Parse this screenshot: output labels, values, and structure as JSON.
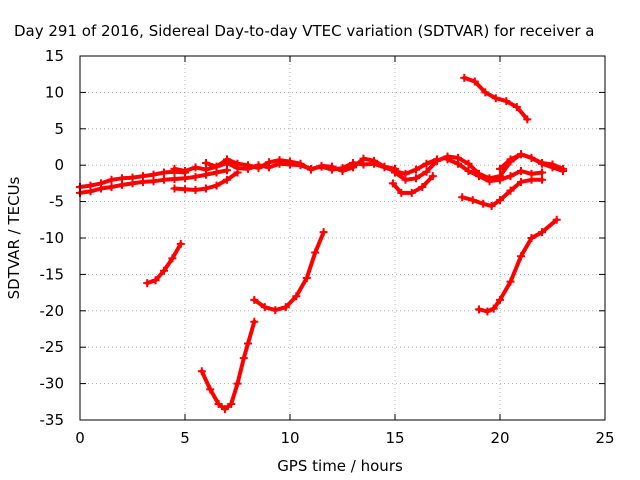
{
  "chart_data": {
    "type": "scatter",
    "title": "Day 291 of 2016, Sidereal Day-to-day VTEC variation (SDTVAR) for receiver a",
    "xlabel": "GPS time / hours",
    "ylabel": "SDTVAR / TECUs",
    "xlim": [
      0,
      25
    ],
    "ylim": [
      -35,
      15
    ],
    "xticks": [
      "0",
      "5",
      "10",
      "15",
      "20",
      "25"
    ],
    "yticks": [
      "15",
      "10",
      "5",
      "0",
      "-5",
      "-10",
      "-15",
      "-20",
      "-25",
      "-30",
      "-35"
    ],
    "grid": true,
    "marker_color": "#ff0000",
    "series": [
      {
        "x": [
          0.0,
          0.5,
          1.0,
          1.5,
          2.0,
          2.5,
          3.0,
          3.5,
          4.0,
          4.5,
          5.0,
          5.5,
          6.0,
          6.5,
          7.0
        ],
        "y": [
          -3.8,
          -3.6,
          -3.2,
          -3.0,
          -2.7,
          -2.5,
          -2.3,
          -2.2,
          -2.0,
          -1.9,
          -1.8,
          -1.6,
          -1.3,
          -1.0,
          -0.7
        ]
      },
      {
        "x": [
          0.0,
          0.5,
          1.0,
          1.5,
          2.0,
          2.5,
          3.0,
          3.5,
          4.0,
          4.5,
          5.0
        ],
        "y": [
          -3.0,
          -2.8,
          -2.5,
          -2.0,
          -1.8,
          -1.7,
          -1.5,
          -1.3,
          -1.0,
          -0.9,
          -1.0
        ]
      },
      {
        "x": [
          4.5,
          5.0,
          5.5,
          6.0,
          6.5,
          7.0,
          7.5,
          8.0,
          8.5,
          9.0,
          9.5,
          10.0,
          10.5,
          11.0,
          11.5,
          12.0,
          12.5,
          13.0,
          13.5,
          14.0,
          14.5,
          15.0,
          15.5,
          16.0,
          16.5,
          17.0
        ],
        "y": [
          -0.5,
          -0.8,
          -0.3,
          -0.6,
          -0.2,
          0.3,
          -0.4,
          -0.5,
          0.0,
          -0.3,
          0.2,
          0.1,
          0.0,
          -0.5,
          -0.2,
          -0.6,
          -0.4,
          0.3,
          0.1,
          0.2,
          -0.3,
          -0.8,
          -1.2,
          -0.6,
          0.2,
          0.8
        ]
      },
      {
        "x": [
          6.0,
          6.5,
          7.0,
          7.5,
          8.0,
          8.5,
          9.0,
          9.5,
          10.0,
          10.5,
          11.0,
          11.5,
          12.0,
          12.5,
          13.0,
          13.5,
          14.0,
          14.5,
          15.0
        ],
        "y": [
          0.3,
          -0.2,
          0.8,
          0.2,
          0.0,
          -0.4,
          0.4,
          0.7,
          0.5,
          0.2,
          -0.6,
          -0.1,
          -0.2,
          -0.8,
          -0.3,
          0.9,
          0.6,
          -0.2,
          -0.5
        ]
      },
      {
        "x": [
          4.5,
          5.0,
          5.5,
          6.0,
          6.5,
          7.0,
          7.5
        ],
        "y": [
          -3.2,
          -3.3,
          -3.4,
          -3.2,
          -2.8,
          -2.0,
          -1.0
        ]
      },
      {
        "x": [
          15.0,
          15.5,
          16.0,
          16.5,
          17.0,
          17.5,
          18.0,
          18.5,
          19.0,
          19.5,
          20.0,
          20.5,
          21.0,
          21.5,
          22.0,
          22.5,
          23.0
        ],
        "y": [
          -1.0,
          -2.0,
          -1.8,
          -0.9,
          0.6,
          1.2,
          1.0,
          0.2,
          -1.2,
          -1.8,
          -1.5,
          0.5,
          1.5,
          1.0,
          0.2,
          -0.3,
          -0.8
        ]
      },
      {
        "x": [
          17.5,
          18.0,
          18.5,
          19.0,
          19.5,
          20.0,
          20.5,
          21.0,
          21.5,
          22.0
        ],
        "y": [
          0.8,
          0.2,
          -0.8,
          -1.5,
          -2.2,
          -2.0,
          -1.5,
          -0.8,
          -1.2,
          -1.0
        ]
      },
      {
        "x": [
          20.0,
          20.5,
          21.0,
          21.5,
          22.0,
          22.5,
          23.0
        ],
        "y": [
          -0.5,
          0.8,
          1.5,
          1.0,
          0.3,
          0.1,
          -0.5
        ]
      },
      {
        "x": [
          14.9,
          15.3,
          15.8,
          16.3,
          16.8
        ],
        "y": [
          -2.5,
          -3.8,
          -3.8,
          -3.0,
          -1.5
        ]
      },
      {
        "x": [
          18.2,
          18.7,
          19.2,
          19.6,
          20.0,
          20.5,
          21.0,
          21.5,
          22.0
        ],
        "y": [
          -4.4,
          -4.8,
          -5.3,
          -5.6,
          -4.8,
          -3.5,
          -2.3,
          -2.0,
          -2.0
        ]
      },
      {
        "x": [
          18.3,
          18.8,
          19.3,
          19.8,
          20.3,
          20.8,
          21.3
        ],
        "y": [
          12.0,
          11.5,
          10.0,
          9.2,
          8.8,
          8.0,
          6.3
        ]
      },
      {
        "x": [
          3.2,
          3.6,
          4.0,
          4.4,
          4.8
        ],
        "y": [
          -16.2,
          -15.8,
          -14.5,
          -12.8,
          -10.8
        ]
      },
      {
        "x": [
          5.8,
          6.2,
          6.6,
          6.9,
          7.2,
          7.5,
          7.8,
          8.0,
          8.3
        ],
        "y": [
          -28.3,
          -30.8,
          -32.8,
          -33.5,
          -32.8,
          -30.0,
          -26.5,
          -24.5,
          -21.5
        ]
      },
      {
        "x": [
          8.3,
          8.8,
          9.3,
          9.8,
          10.3,
          10.8,
          11.2,
          11.6
        ],
        "y": [
          -18.5,
          -19.5,
          -19.9,
          -19.5,
          -18.0,
          -15.5,
          -12.0,
          -9.2
        ]
      },
      {
        "x": [
          19.0,
          19.4,
          19.7,
          20.0,
          20.5,
          21.0,
          21.5,
          22.0,
          22.7
        ],
        "y": [
          -19.8,
          -20.1,
          -19.7,
          -18.5,
          -16.0,
          -12.5,
          -10.0,
          -9.2,
          -7.5
        ]
      }
    ]
  }
}
